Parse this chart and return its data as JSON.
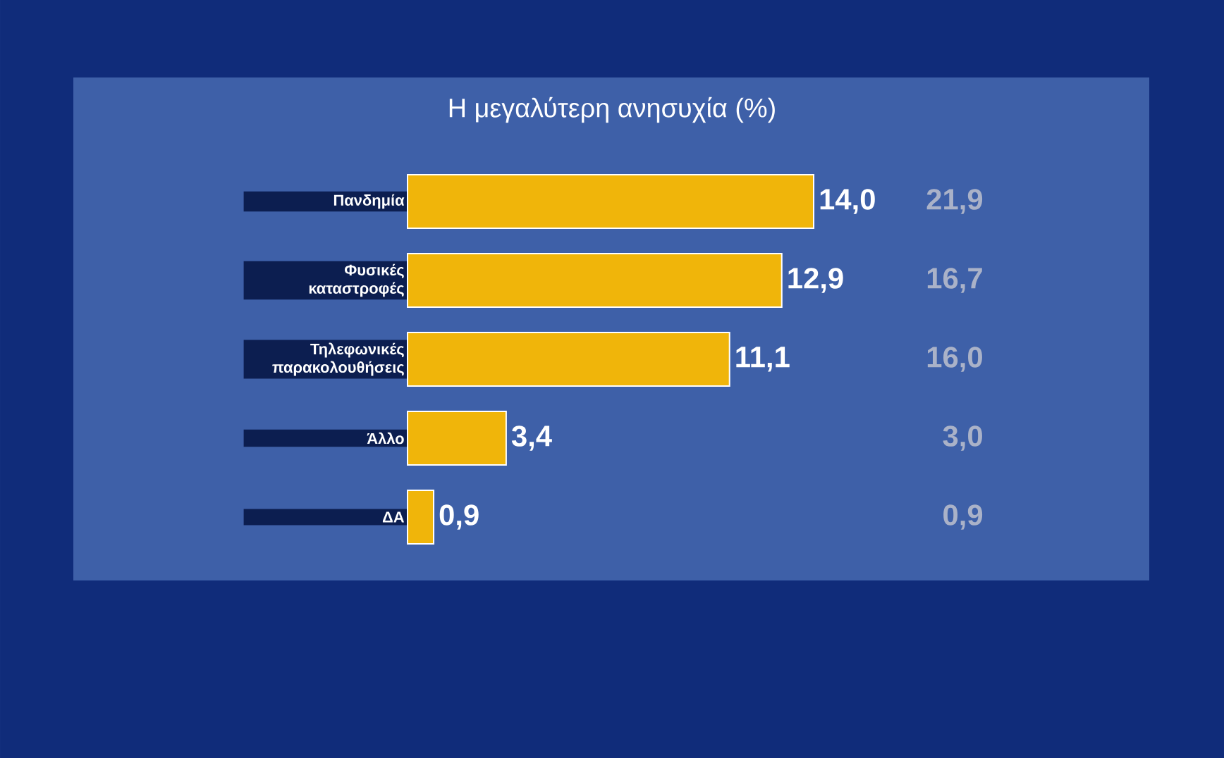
{
  "chart_data": {
    "type": "bar",
    "orientation": "horizontal",
    "title": "Η μεγαλύτερη ανησυχία (%)",
    "categories": [
      "Πανδημία",
      "Φυσικές καταστροφές",
      "Τηλεφωνικές παρακολουθήσεις",
      "Άλλο",
      "ΔΑ"
    ],
    "values": [
      14.0,
      12.9,
      11.1,
      3.4,
      0.9
    ],
    "value_labels": [
      "14,0",
      "12,9",
      "11,1",
      "3,4",
      "0,9"
    ],
    "color": "#f0b50a",
    "annotations": [
      "21,9",
      "16,7",
      "16,0",
      "3,0",
      "0,9"
    ]
  }
}
